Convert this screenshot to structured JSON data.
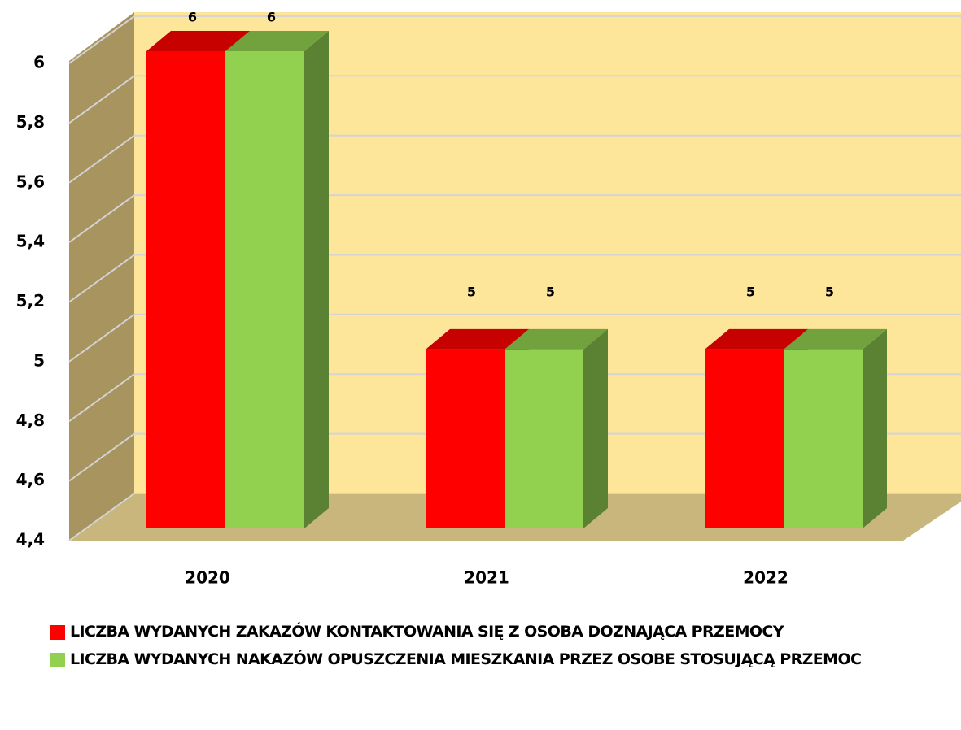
{
  "chart_data": {
    "type": "bar3d",
    "categories": [
      "2020",
      "2021",
      "2022"
    ],
    "series": [
      {
        "name": "LICZBA WYDANYCH ZAKAZÓW KONTAKTOWANIA SIĘ Z OSOBA DOZNAJĄCA PRZEMOCY",
        "color": "#ff0000",
        "values": [
          6,
          5,
          5
        ]
      },
      {
        "name": "LICZBA WYDANYCH NAKAZÓW OPUSZCZENIA MIESZKANIA PRZEZ OSOBE STOSUJĄCĄ PRZEMOC",
        "color": "#92d050",
        "values": [
          6,
          5,
          5
        ]
      }
    ],
    "ylim": [
      4.4,
      6
    ],
    "yticks": [
      {
        "value": 4.4,
        "label": "4,4"
      },
      {
        "value": 4.6,
        "label": "4,6"
      },
      {
        "value": 4.8,
        "label": "4,8"
      },
      5,
      {
        "value": 5.2,
        "label": "5,2"
      },
      {
        "value": 5.4,
        "label": "5,4"
      },
      {
        "value": 5.6,
        "label": "5,6"
      },
      {
        "value": 5.8,
        "label": "5,8"
      },
      6
    ],
    "grid": true,
    "legend": "bottom"
  }
}
